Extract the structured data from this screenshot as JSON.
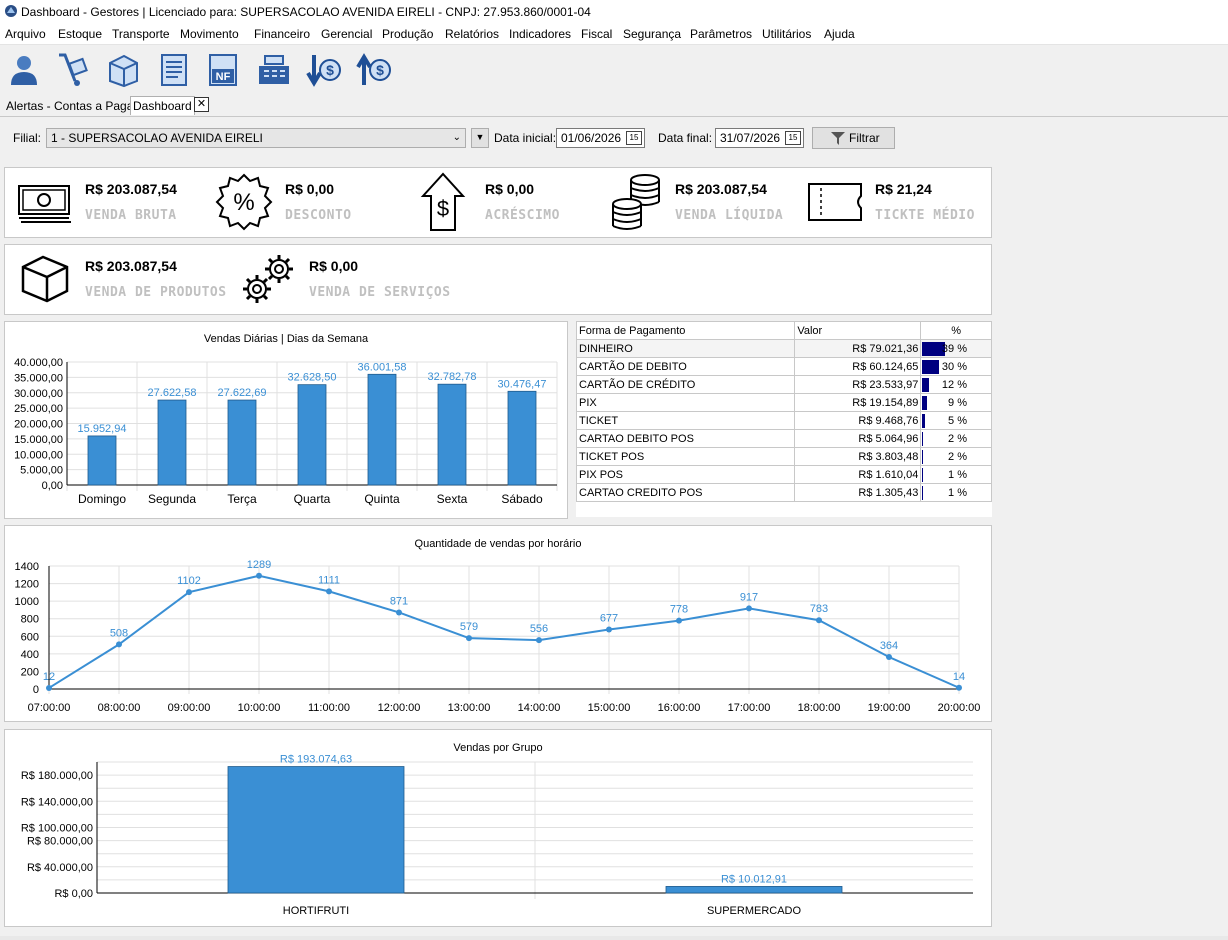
{
  "window": {
    "title": "Dashboard - Gestores | Licenciado para: SUPERSACOLAO AVENIDA EIRELI - CNPJ: 27.953.860/0001-04"
  },
  "menu": [
    "Arquivo",
    "Estoque",
    "Transporte",
    "Movimento",
    "Financeiro",
    "Gerencial",
    "Produção",
    "Relatórios",
    "Indicadores",
    "Fiscal",
    "Segurança",
    "Parâmetros",
    "Utilitários",
    "Ajuda"
  ],
  "toolbar": [
    "user-icon",
    "hand-truck-icon",
    "box-icon",
    "document-list-icon",
    "nf-icon",
    "cash-register-icon",
    "dollar-down-icon",
    "dollar-up-icon"
  ],
  "tabs": {
    "alerts": "Alertas - Contas a Pagar",
    "dashboard": "Dashboard",
    "close": "✕"
  },
  "filter": {
    "filial_label": "Filial:",
    "filial_value": "1 - SUPERSACOLAO AVENIDA EIRELI",
    "data_inicial_label": "Data inicial:",
    "data_inicial": "01/06/2026",
    "data_final_label": "Data final:",
    "data_final": "31/07/2026",
    "filter_button": "Filtrar",
    "cal_glyph": "15"
  },
  "kpis": {
    "venda_bruta": {
      "value": "R$ 203.087,54",
      "caption": "VENDA BRUTA"
    },
    "desconto": {
      "value": "R$ 0,00",
      "caption": "DESCONTO"
    },
    "acrescimo": {
      "value": "R$ 0,00",
      "caption": "ACRÉSCIMO"
    },
    "venda_liquida": {
      "value": "R$ 203.087,54",
      "caption": "VENDA LÍQUIDA"
    },
    "ticket_medio": {
      "value": "R$ 21,24",
      "caption": "TICKTE MÉDIO"
    },
    "venda_produtos": {
      "value": "R$ 203.087,54",
      "caption": "VENDA DE PRODUTOS"
    },
    "venda_servicos": {
      "value": "R$ 0,00",
      "caption": "VENDA DE SERVIÇOS"
    }
  },
  "payments": {
    "headers": [
      "Forma de Pagamento",
      "Valor",
      "%"
    ],
    "rows": [
      {
        "name": "DINHEIRO",
        "value": "R$ 79.021,36",
        "pct": "39 %",
        "fraction": 0.39
      },
      {
        "name": "CARTÃO DE DEBITO",
        "value": "R$ 60.124,65",
        "pct": "30 %",
        "fraction": 0.3
      },
      {
        "name": "CARTÃO DE CRÉDITO",
        "value": "R$ 23.533,97",
        "pct": "12 %",
        "fraction": 0.12
      },
      {
        "name": "PIX",
        "value": "R$ 19.154,89",
        "pct": "9 %",
        "fraction": 0.09
      },
      {
        "name": "TICKET",
        "value": "R$ 9.468,76",
        "pct": "5 %",
        "fraction": 0.05
      },
      {
        "name": "CARTAO DEBITO POS",
        "value": "R$ 5.064,96",
        "pct": "2 %",
        "fraction": 0.02
      },
      {
        "name": "TICKET POS",
        "value": "R$ 3.803,48",
        "pct": "2 %",
        "fraction": 0.02
      },
      {
        "name": "PIX POS",
        "value": "R$ 1.610,04",
        "pct": "1 %",
        "fraction": 0.01
      },
      {
        "name": "CARTAO CREDITO POS",
        "value": "R$ 1.305,43",
        "pct": "1 %",
        "fraction": 0.01
      }
    ]
  },
  "chart_data": [
    {
      "type": "bar",
      "title": "Vendas Diárias | Dias da Semana",
      "categories": [
        "Domingo",
        "Segunda",
        "Terça",
        "Quarta",
        "Quinta",
        "Sexta",
        "Sábado"
      ],
      "values": [
        15952.94,
        27622.58,
        27622.69,
        32628.5,
        36001.58,
        32782.78,
        30476.47
      ],
      "value_labels": [
        "15.952,94",
        "27.622,58",
        "27.622,69",
        "32.628,50",
        "36.001,58",
        "32.782,78",
        "30.476,47"
      ],
      "yticks": [
        "0,00",
        "5.000,00",
        "10.000,00",
        "15.000,00",
        "20.000,00",
        "25.000,00",
        "30.000,00",
        "35.000,00",
        "40.000,00"
      ],
      "ylim": [
        0,
        40000
      ],
      "grid": true,
      "color": "#3a8fd4"
    },
    {
      "type": "line",
      "title": "Quantidade de vendas por horário",
      "x": [
        "07:00:00",
        "08:00:00",
        "09:00:00",
        "10:00:00",
        "11:00:00",
        "12:00:00",
        "13:00:00",
        "14:00:00",
        "15:00:00",
        "16:00:00",
        "17:00:00",
        "18:00:00",
        "19:00:00",
        "20:00:00"
      ],
      "values": [
        12,
        508,
        1102,
        1289,
        1111,
        871,
        579,
        556,
        677,
        778,
        917,
        783,
        364,
        14
      ],
      "yticks": [
        "0",
        "200",
        "400",
        "600",
        "800",
        "1000",
        "1200",
        "1400"
      ],
      "ylim": [
        0,
        1400
      ],
      "grid": true,
      "color": "#3a8fd4"
    },
    {
      "type": "bar",
      "title": "Vendas por Grupo",
      "categories": [
        "HORTIFRUTI",
        "SUPERMERCADO"
      ],
      "values": [
        193074.63,
        10012.91
      ],
      "value_labels": [
        "R$ 193.074,63",
        "R$ 10.012,91"
      ],
      "yticks": [
        "R$ 0,00",
        "R$ 40.000,00",
        "R$ 80.000,00",
        "R$ 100.000,00",
        "R$ 140.000,00",
        "R$ 180.000,00"
      ],
      "ytick_values": [
        0,
        40000,
        80000,
        100000,
        140000,
        180000
      ],
      "ylim": [
        0,
        200000
      ],
      "grid": true,
      "color": "#3a8fd4"
    }
  ]
}
